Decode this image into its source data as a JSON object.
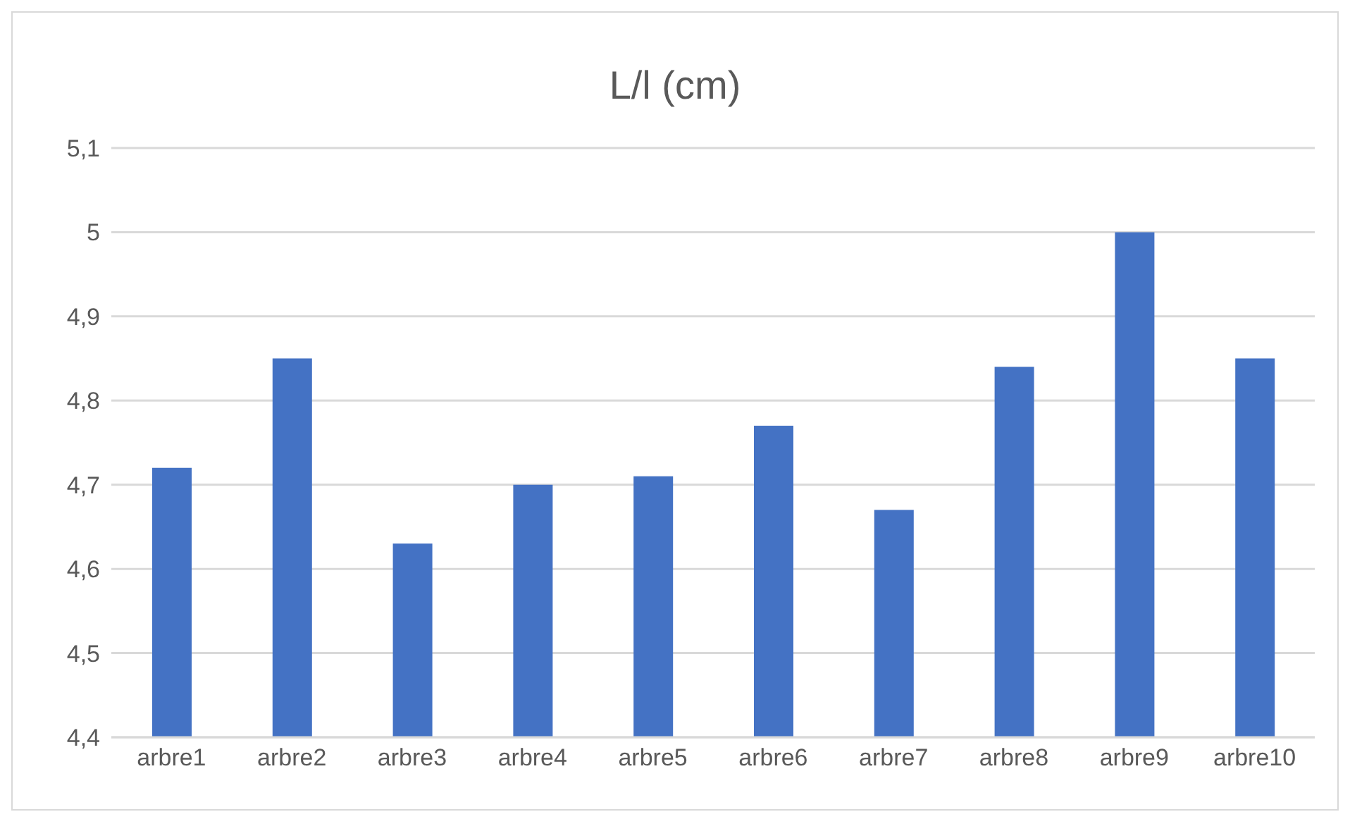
{
  "chart_data": {
    "type": "bar",
    "title": "L/l (cm)",
    "categories": [
      "arbre1",
      "arbre2",
      "arbre3",
      "arbre4",
      "arbre5",
      "arbre6",
      "arbre7",
      "arbre8",
      "arbre9",
      "arbre10"
    ],
    "values": [
      4.72,
      4.85,
      4.63,
      4.7,
      4.71,
      4.77,
      4.67,
      4.84,
      5.0,
      4.85
    ],
    "color": "#4472c4",
    "ylim": [
      4.4,
      5.1
    ],
    "yticks": [
      {
        "value": 4.4,
        "label": "4,4"
      },
      {
        "value": 4.5,
        "label": "4,5"
      },
      {
        "value": 4.6,
        "label": "4,6"
      },
      {
        "value": 4.7,
        "label": "4,7"
      },
      {
        "value": 4.8,
        "label": "4,8"
      },
      {
        "value": 4.9,
        "label": "4,9"
      },
      5,
      {
        "value": 5.1,
        "label": "5,1"
      }
    ],
    "grid": "y"
  }
}
